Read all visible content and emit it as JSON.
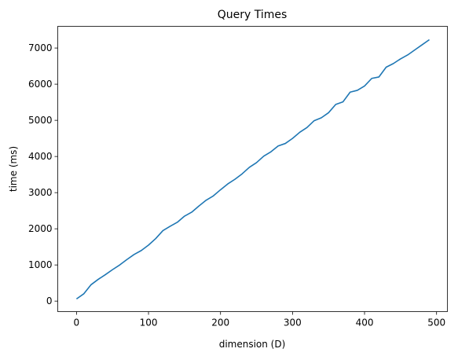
{
  "chart_data": {
    "type": "line",
    "title": "Query Times",
    "xlabel": "dimension (D)",
    "ylabel": "time (ms)",
    "xlim": [
      -26.05,
      515.05
    ],
    "ylim": [
      -290,
      7600
    ],
    "xticks": [
      0,
      100,
      200,
      300,
      400,
      500
    ],
    "yticks": [
      0,
      1000,
      2000,
      3000,
      4000,
      5000,
      6000,
      7000
    ],
    "grid": false,
    "series": [
      {
        "color": "#1f77b4",
        "x": [
          0,
          10,
          20,
          30,
          40,
          50,
          60,
          70,
          80,
          90,
          100,
          110,
          120,
          130,
          140,
          150,
          160,
          170,
          180,
          190,
          200,
          210,
          220,
          230,
          240,
          250,
          260,
          270,
          280,
          290,
          300,
          310,
          320,
          330,
          340,
          350,
          360,
          370,
          380,
          390,
          400,
          410,
          420,
          430,
          440,
          450,
          460,
          470,
          480,
          490
        ],
        "y": [
          60,
          200,
          450,
          600,
          730,
          870,
          1000,
          1150,
          1290,
          1400,
          1550,
          1730,
          1950,
          2070,
          2180,
          2350,
          2460,
          2630,
          2790,
          2910,
          3080,
          3240,
          3370,
          3520,
          3700,
          3830,
          4010,
          4130,
          4290,
          4360,
          4500,
          4670,
          4800,
          4990,
          5070,
          5210,
          5440,
          5510,
          5780,
          5830,
          5950,
          6160,
          6200,
          6470,
          6570,
          6700,
          6810,
          6950,
          7090,
          7230
        ]
      }
    ]
  }
}
